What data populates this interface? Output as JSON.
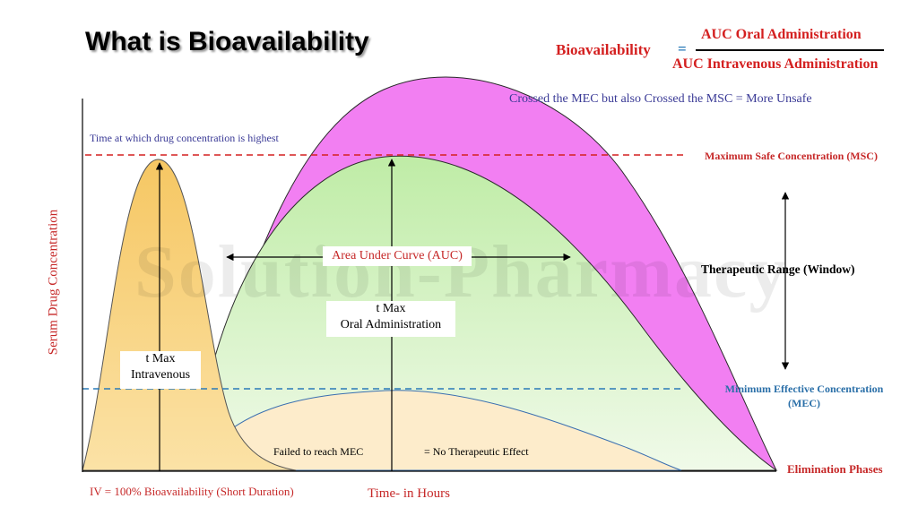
{
  "title": "What is Bioavailability",
  "formula": {
    "label": "Bioavailability",
    "equals": "=",
    "numerator": "AUC Oral Administration",
    "denominator": "AUC Intravenous Administration"
  },
  "annotations": {
    "unsafe_note": "Crossed the MEC but also Crossed the MSC = More Unsafe",
    "peak_note": "Time at which drug concentration is highest",
    "msc_label": "Maximum  Safe Concentration (MSC)",
    "therapeutic_range": "Therapeutic Range (Window)",
    "mec_label": "Minimum Effective Concentration (MEC)",
    "elimination": "Elimination Phases",
    "auc_label": "Area Under Curve (AUC)",
    "oral_tmax_line1": "t Max",
    "oral_tmax_line2": "Oral Administration",
    "iv_tmax_line1": "t Max",
    "iv_tmax_line2": "Intravenous",
    "failed_mec": "Failed to reach MEC",
    "no_effect": "= No Therapeutic Effect",
    "iv_note": "IV = 100% Bioavailability (Short Duration)"
  },
  "axes": {
    "ylabel": "Serum Drug Concentration",
    "xlabel": "Time- in Hours"
  },
  "watermark": "Solution-Pharmacy",
  "colors": {
    "unsafe_fill": "#f27ff2",
    "auc_fill_top": "#c7efb0",
    "auc_fill_bottom": "#eefae6",
    "iv_fill": "#f8d58a",
    "low_fill": "#fdecc8",
    "msc_line": "#d42020",
    "mec_line": "#2a7ab8",
    "title_red": "#c62828"
  }
}
